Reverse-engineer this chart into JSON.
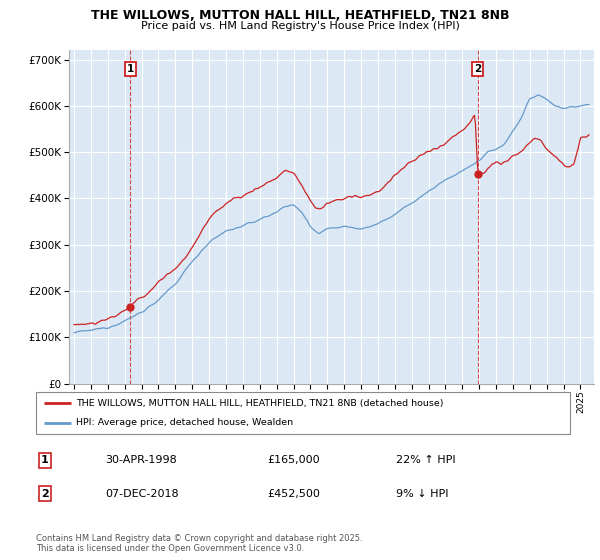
{
  "title_line1": "THE WILLOWS, MUTTON HALL HILL, HEATHFIELD, TN21 8NB",
  "title_line2": "Price paid vs. HM Land Registry's House Price Index (HPI)",
  "background_color": "#ffffff",
  "plot_bg_color": "#dce9f5",
  "grid_color": "#ffffff",
  "red_color": "#cc2222",
  "blue_color": "#6699cc",
  "ann1_x": 1998.33,
  "ann1_y": 165000,
  "ann2_x": 2018.92,
  "ann2_y": 452500,
  "legend_entry1": "THE WILLOWS, MUTTON HALL HILL, HEATHFIELD, TN21 8NB (detached house)",
  "legend_entry2": "HPI: Average price, detached house, Wealden",
  "table_row1": [
    "1",
    "30-APR-1998",
    "£165,000",
    "22% ↑ HPI"
  ],
  "table_row2": [
    "2",
    "07-DEC-2018",
    "£452,500",
    "9% ↓ HPI"
  ],
  "footnote": "Contains HM Land Registry data © Crown copyright and database right 2025.\nThis data is licensed under the Open Government Licence v3.0.",
  "ylim": [
    0,
    720000
  ],
  "xlim_start": 1994.7,
  "xlim_end": 2025.8
}
